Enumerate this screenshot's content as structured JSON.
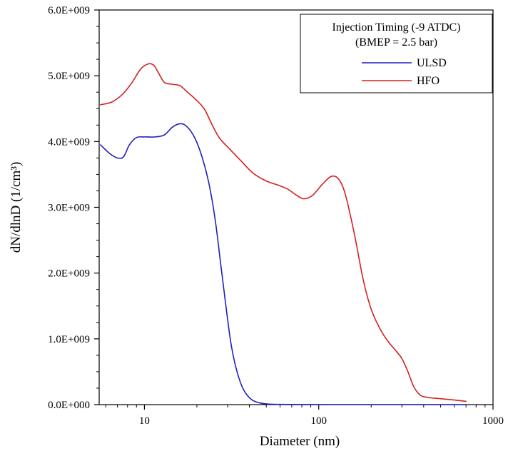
{
  "chart_data": {
    "type": "line",
    "title": "",
    "xlabel": "Diameter (nm)",
    "ylabel": "dN/dlnD (1/cm³)",
    "x_scale": "log",
    "xlim": [
      5.5,
      1000
    ],
    "ylim": [
      0,
      6000000000
    ],
    "x_ticks": [
      10,
      100,
      1000
    ],
    "x_tick_labels": [
      "10",
      "100",
      "1000"
    ],
    "y_ticks": [
      0,
      1000000000,
      2000000000,
      3000000000,
      4000000000,
      5000000000,
      6000000000
    ],
    "y_tick_labels": [
      "0.0E+000",
      "1.0E+009",
      "2.0E+009",
      "3.0E+009",
      "4.0E+009",
      "5.0E+009",
      "6.0E+009"
    ],
    "grid": false,
    "legend": {
      "placement": "top-right",
      "title_lines": [
        "Injection Timing (-9 ATDC)",
        "(BMEP = 2.5 bar)"
      ]
    },
    "series": [
      {
        "name": "ULSD",
        "color": "#1f1fbf",
        "x": [
          5.6,
          6.3,
          7.0,
          7.6,
          8.2,
          9.0,
          10.0,
          11.5,
          13.0,
          14.5,
          16.0,
          17.5,
          19.5,
          21.5,
          23.5,
          25.5,
          27.5,
          29.5,
          31.5,
          34.0,
          37.0,
          41.0,
          46.0,
          52.0,
          60.0,
          80.0,
          120.0,
          200.0,
          400.0,
          700.0
        ],
        "y": [
          3950000000,
          3820000000,
          3750000000,
          3770000000,
          3950000000,
          4060000000,
          4070000000,
          4070000000,
          4100000000,
          4220000000,
          4270000000,
          4230000000,
          4050000000,
          3750000000,
          3350000000,
          2800000000,
          2100000000,
          1450000000,
          900000000,
          500000000,
          230000000,
          80000000,
          25000000,
          8000000,
          3000000,
          1000000,
          0,
          0,
          0,
          0
        ]
      },
      {
        "name": "HFO",
        "color": "#d42020",
        "x": [
          5.6,
          6.5,
          7.5,
          8.5,
          9.5,
          10.5,
          11.3,
          12.0,
          13.0,
          14.5,
          16.0,
          17.5,
          19.5,
          22.0,
          24.5,
          27.0,
          31.0,
          36.0,
          42.0,
          50.0,
          58.0,
          66.0,
          74.0,
          82.0,
          92.0,
          105.0,
          118.0,
          130.0,
          142.0,
          160.0,
          180.0,
          200.0,
          225.0,
          250.0,
          275.0,
          300.0,
          325.0,
          350.0,
          380.0,
          420.0,
          500.0,
          600.0,
          700.0
        ],
        "y": [
          4560000000,
          4600000000,
          4720000000,
          4900000000,
          5100000000,
          5180000000,
          5160000000,
          5050000000,
          4900000000,
          4870000000,
          4850000000,
          4760000000,
          4650000000,
          4500000000,
          4250000000,
          4050000000,
          3880000000,
          3700000000,
          3520000000,
          3400000000,
          3340000000,
          3280000000,
          3190000000,
          3130000000,
          3180000000,
          3350000000,
          3470000000,
          3430000000,
          3200000000,
          2600000000,
          1900000000,
          1450000000,
          1150000000,
          960000000,
          830000000,
          700000000,
          500000000,
          280000000,
          150000000,
          110000000,
          90000000,
          70000000,
          50000000
        ]
      }
    ]
  }
}
